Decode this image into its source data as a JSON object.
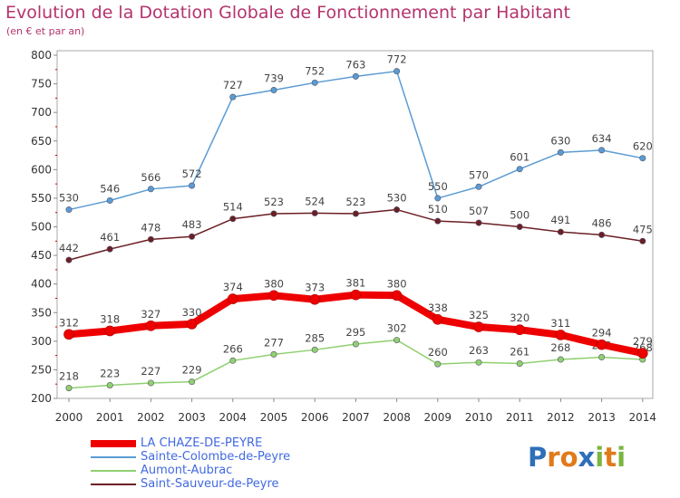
{
  "chart_data": {
    "type": "line",
    "title": "Evolution de la Dotation Globale de Fonctionnement par Habitant",
    "subtitle": "(en € et par an)",
    "xlabel": "",
    "ylabel": "",
    "categories": [
      "2000",
      "2001",
      "2002",
      "2003",
      "2004",
      "2005",
      "2006",
      "2007",
      "2008",
      "2009",
      "2010",
      "2011",
      "2012",
      "2013",
      "2014"
    ],
    "ylim": [
      200,
      800
    ],
    "yticks": [
      200,
      250,
      300,
      350,
      400,
      450,
      500,
      550,
      600,
      650,
      700,
      750,
      800
    ],
    "grid": false,
    "legend": "bottom-left",
    "series": [
      {
        "name": "Sainte-Colombe-de-Peyre",
        "color": "#5a9bd4",
        "values": [
          530,
          546,
          566,
          572,
          727,
          739,
          752,
          763,
          772,
          550,
          570,
          601,
          630,
          634,
          620
        ]
      },
      {
        "name": "Saint-Sauveur-de-Peyre",
        "color": "#6b1f25",
        "values": [
          442,
          461,
          478,
          483,
          514,
          523,
          524,
          523,
          530,
          510,
          507,
          500,
          491,
          486,
          475
        ]
      },
      {
        "name": "Aumont-Aubrac",
        "color": "#90d070",
        "values": [
          218,
          223,
          227,
          229,
          266,
          277,
          285,
          295,
          302,
          260,
          263,
          261,
          268,
          272,
          268
        ]
      },
      {
        "name": "LA CHAZE-DE-PEYRE",
        "color": "#ee0000",
        "values": [
          312,
          318,
          327,
          330,
          374,
          380,
          373,
          381,
          380,
          338,
          325,
          320,
          311,
          294,
          279
        ]
      }
    ]
  },
  "legend_items": [
    {
      "name": "LA CHAZE-DE-PEYRE",
      "color": "#ee0000"
    },
    {
      "name": "Sainte-Colombe-de-Peyre",
      "color": "#5a9bd4"
    },
    {
      "name": "Aumont-Aubrac",
      "color": "#90d070"
    },
    {
      "name": "Saint-Sauveur-de-Peyre",
      "color": "#6b1f25"
    }
  ],
  "logo": {
    "letters": [
      "P",
      "r",
      "o",
      "x",
      "i",
      "t",
      "i"
    ],
    "colors": [
      "#2e6fb7",
      "#e07a1a",
      "#e07a1a",
      "#2e6fb7",
      "#7ab640",
      "#e07a1a",
      "#7ab640"
    ]
  }
}
